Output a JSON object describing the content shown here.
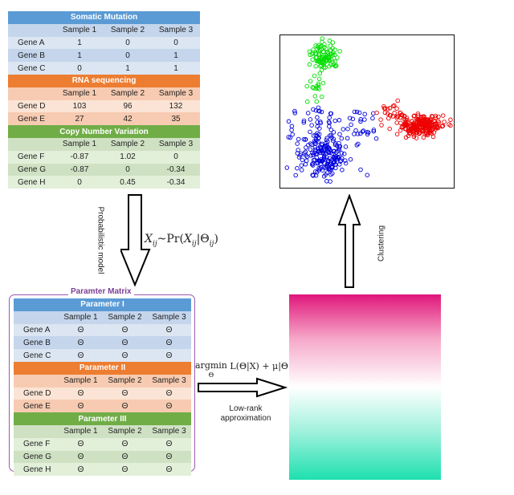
{
  "top_table": {
    "sections": [
      {
        "title": "Somatic Mutation",
        "color": "#5b9bd5",
        "light": "#dce6f2",
        "dark": "#c4d5ec",
        "columns": [
          "Sample 1",
          "Sample 2",
          "Sample 3"
        ],
        "rows": [
          {
            "label": "Gene A",
            "values": [
              "1",
              "0",
              "0"
            ]
          },
          {
            "label": "Gene B",
            "values": [
              "1",
              "0",
              "1"
            ]
          },
          {
            "label": "Gene C",
            "values": [
              "0",
              "1",
              "1"
            ]
          }
        ]
      },
      {
        "title": "RNA sequencing",
        "color": "#ed7d31",
        "light": "#fbe4d5",
        "dark": "#f7cbb1",
        "columns": [
          "Sample 1",
          "Sample 2",
          "Sample 3"
        ],
        "rows": [
          {
            "label": "Gene D",
            "values": [
              "103",
              "96",
              "132"
            ]
          },
          {
            "label": "Gene E",
            "values": [
              "27",
              "42",
              "35"
            ]
          }
        ]
      },
      {
        "title": "Copy Number Variation",
        "color": "#70ad47",
        "light": "#e2efd9",
        "dark": "#cfe1c3",
        "columns": [
          "Sample 1",
          "Sample 2",
          "Sample 3"
        ],
        "rows": [
          {
            "label": "Gene F",
            "values": [
              "-0.87",
              "1.02",
              "0"
            ]
          },
          {
            "label": "Gene G",
            "values": [
              "-0.87",
              "0",
              "-0.34"
            ]
          },
          {
            "label": "Gene H",
            "values": [
              "0",
              "0.45",
              "-0.34"
            ]
          }
        ]
      }
    ]
  },
  "param_matrix": {
    "title": "Paramter Matrix",
    "sections": [
      {
        "title": "Parameter I",
        "color": "#5b9bd5",
        "light": "#dce6f2",
        "dark": "#c4d5ec",
        "columns": [
          "Sample 1",
          "Sample 2",
          "Sample 3"
        ],
        "rows": [
          {
            "label": "Gene A",
            "values": [
              "Θ",
              "Θ",
              "Θ"
            ]
          },
          {
            "label": "Gene B",
            "values": [
              "Θ",
              "Θ",
              "Θ"
            ]
          },
          {
            "label": "Gene C",
            "values": [
              "Θ",
              "Θ",
              "Θ"
            ]
          }
        ]
      },
      {
        "title": "Parameter II",
        "color": "#ed7d31",
        "light": "#fbe4d5",
        "dark": "#f7cbb1",
        "columns": [
          "Sample 1",
          "Sample 2",
          "Sample 3"
        ],
        "rows": [
          {
            "label": "Gene D",
            "values": [
              "Θ",
              "Θ",
              "Θ"
            ]
          },
          {
            "label": "Gene E",
            "values": [
              "Θ",
              "Θ",
              "Θ"
            ]
          }
        ]
      },
      {
        "title": "Parameter III",
        "color": "#70ad47",
        "light": "#e2efd9",
        "dark": "#cfe1c3",
        "columns": [
          "Sample 1",
          "Sample 2",
          "Sample 3"
        ],
        "rows": [
          {
            "label": "Gene F",
            "values": [
              "Θ",
              "Θ",
              "Θ"
            ]
          },
          {
            "label": "Gene G",
            "values": [
              "Θ",
              "Θ",
              "Θ"
            ]
          },
          {
            "label": "Gene H",
            "values": [
              "Θ",
              "Θ",
              "Θ"
            ]
          }
        ]
      }
    ]
  },
  "labels": {
    "probabilistic_model": "Probabilistic model",
    "formula_model": "X_ij ~ Pr(X_ij | Θ_ij)",
    "clustering": "Clustering",
    "argmin": "argmin",
    "argmin_sub": "Θ",
    "objective": "L(Θ|X) + μ|Θ|*",
    "low_rank_line1": "Low-rank",
    "low_rank_line2": "approximation"
  },
  "scatter": {
    "clusters": [
      {
        "color": "#00dd00"
      },
      {
        "color": "#0000dd"
      },
      {
        "color": "#ee0000"
      }
    ]
  }
}
